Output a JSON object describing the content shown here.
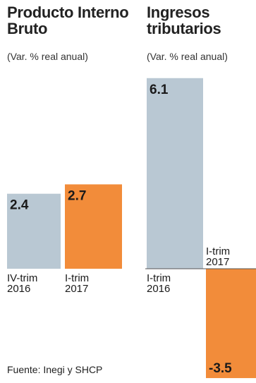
{
  "chart_data": [
    {
      "type": "bar",
      "title": "Producto Interno Bruto",
      "subtitle": "(Var. % real anual)",
      "categories": [
        "IV-trim 2016",
        "I-trim 2017"
      ],
      "values": [
        2.4,
        2.7
      ],
      "value_labels": [
        "2.4",
        "2.7"
      ],
      "colors": [
        "#b9c8d3",
        "#f28c3a"
      ]
    },
    {
      "type": "bar",
      "title": "Ingresos tributarios",
      "subtitle": "(Var. % real anual)",
      "categories": [
        "I-trim 2016",
        "I-trim 2017"
      ],
      "values": [
        6.1,
        -3.5
      ],
      "value_labels": [
        "6.1",
        "-3.5"
      ],
      "colors": [
        "#b9c8d3",
        "#f28c3a"
      ]
    }
  ],
  "source": "Fuente: Inegi y SHCP"
}
